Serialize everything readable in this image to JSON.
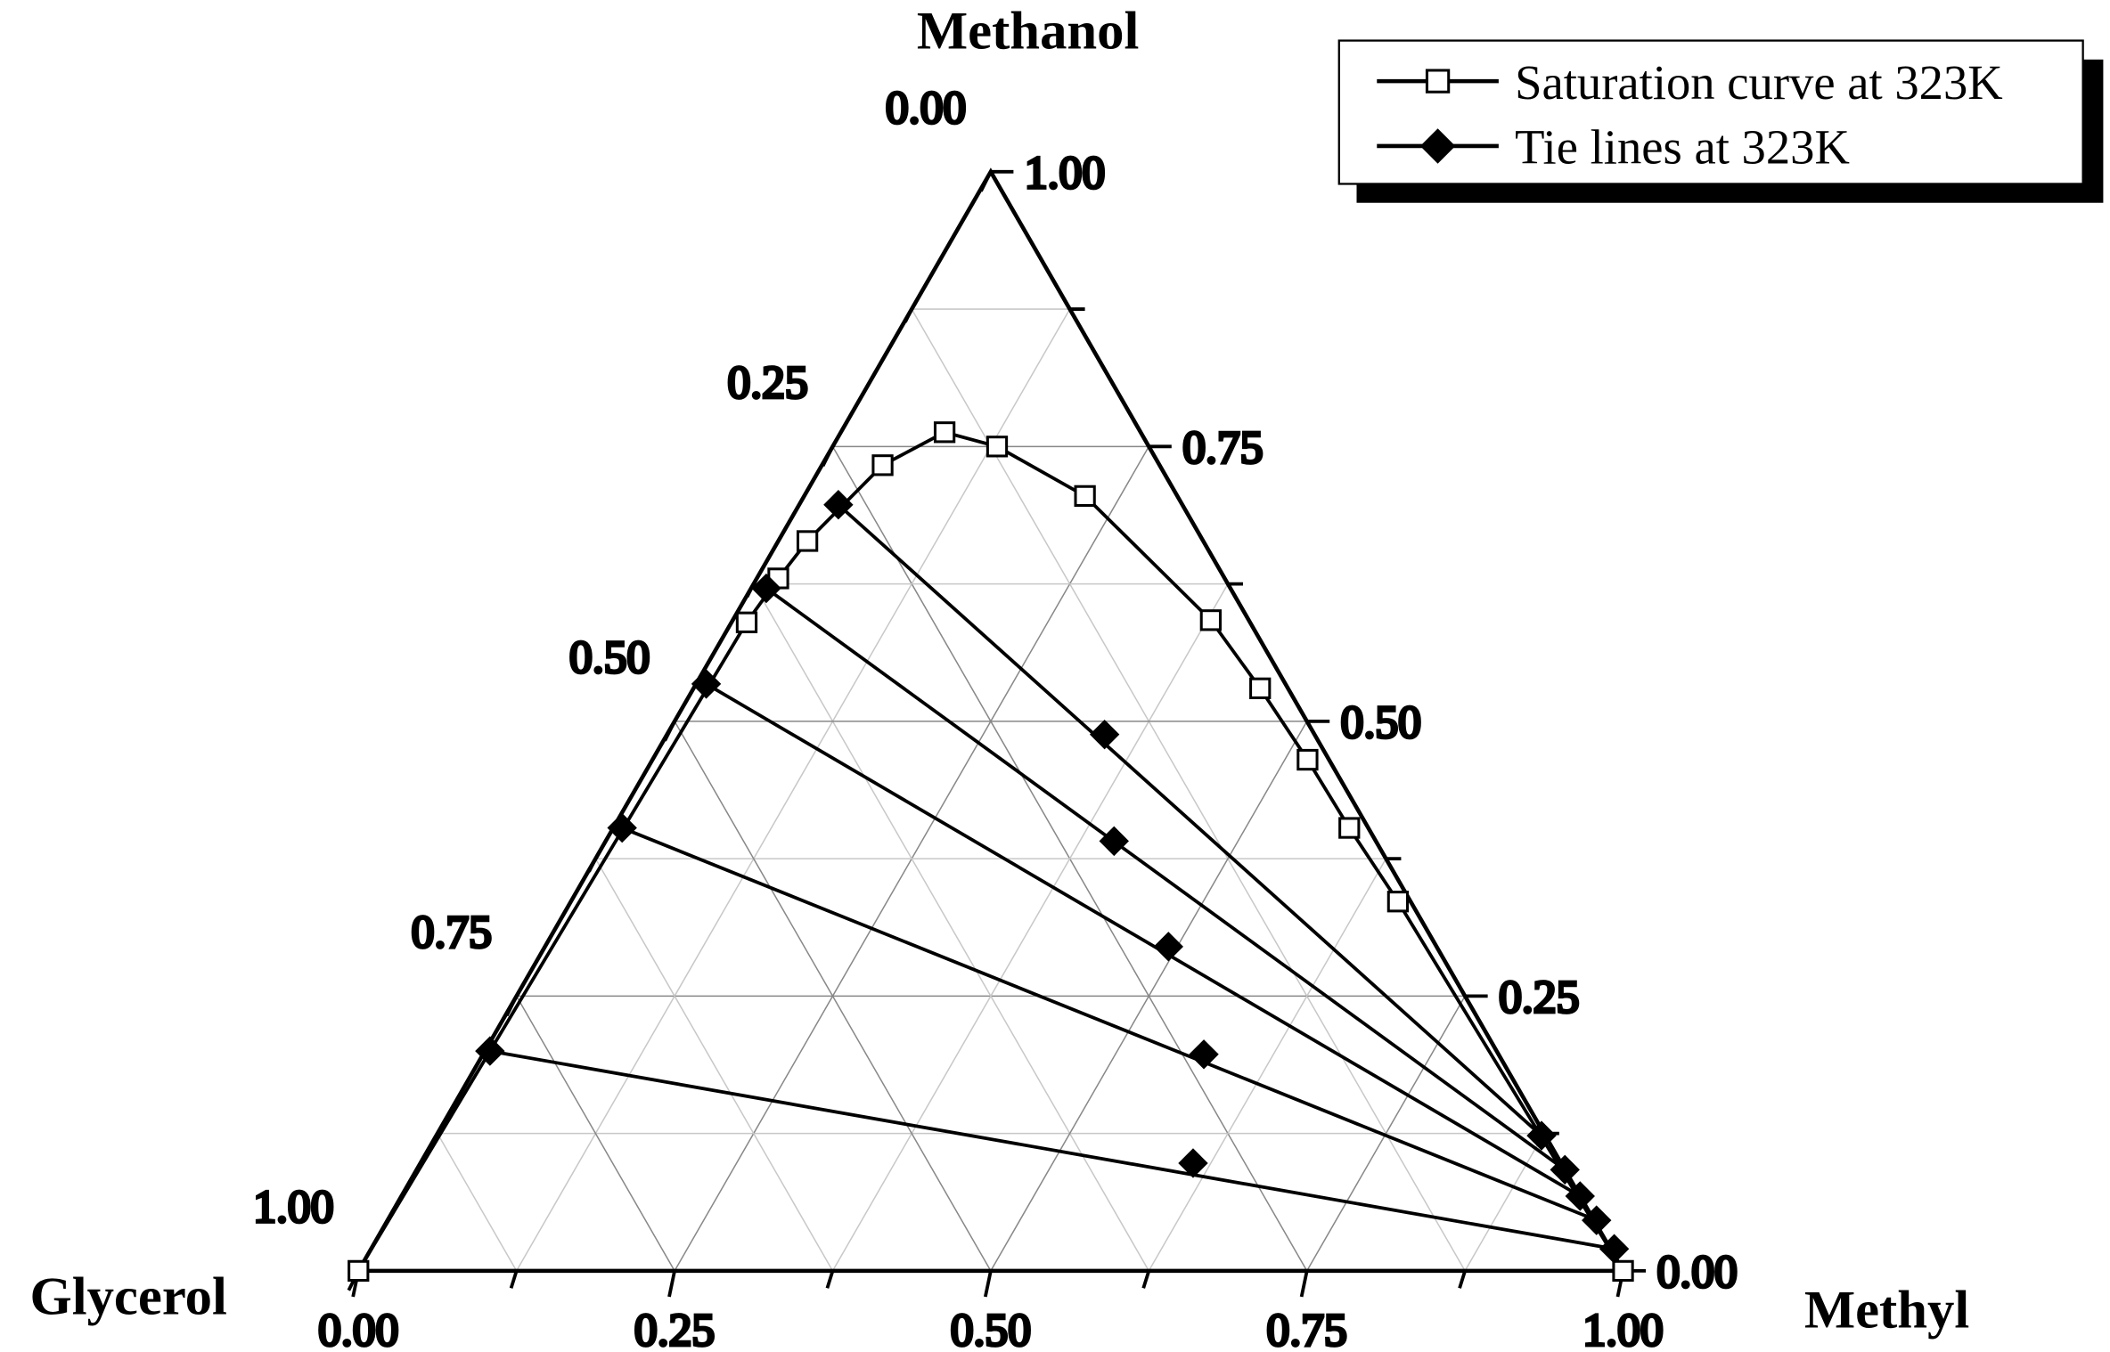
{
  "chart_data": {
    "type": "ternary",
    "axes": {
      "top": "Methanol",
      "left": "Glycerol",
      "right": "Methyl"
    },
    "ticks": [
      "0.00",
      "0.25",
      "0.50",
      "0.75",
      "1.00"
    ],
    "minor_tick_step": 0.125,
    "grid": true,
    "legend_position": "top-right",
    "series": [
      {
        "name": "Saturation curve at 323K",
        "marker": "open-square",
        "color": "#000000",
        "points": [
          {
            "methyl": 0.0,
            "methanol": 0.0
          },
          {
            "methyl": 0.012,
            "methanol": 0.59
          },
          {
            "methyl": 0.017,
            "methanol": 0.63
          },
          {
            "methyl": 0.023,
            "methanol": 0.664
          },
          {
            "methyl": 0.048,
            "methanol": 0.733
          },
          {
            "methyl": 0.082,
            "methanol": 0.763
          },
          {
            "methyl": 0.13,
            "methanol": 0.75
          },
          {
            "methyl": 0.222,
            "methanol": 0.705
          },
          {
            "methyl": 0.378,
            "methanol": 0.592
          },
          {
            "methyl": 0.448,
            "methanol": 0.53
          },
          {
            "methyl": 0.518,
            "methanol": 0.465
          },
          {
            "methyl": 0.582,
            "methanol": 0.403
          },
          {
            "methyl": 0.654,
            "methanol": 0.336
          },
          {
            "methyl": 1.0,
            "methanol": 0.0
          }
        ]
      },
      {
        "name": "Tie lines at 323K",
        "marker": "filled-diamond",
        "color": "#000000",
        "lines": [
          [
            {
              "methyl": 0.031,
              "methanol": 0.697
            },
            {
              "methyl": 0.346,
              "methanol": 0.488
            },
            {
              "methyl": 0.874,
              "methanol": 0.123
            }
          ],
          [
            {
              "methyl": 0.012,
              "methanol": 0.621
            },
            {
              "methyl": 0.402,
              "methanol": 0.391
            },
            {
              "methyl": 0.908,
              "methanol": 0.092
            }
          ],
          [
            {
              "methyl": 0.008,
              "methanol": 0.534
            },
            {
              "methyl": 0.493,
              "methanol": 0.295
            },
            {
              "methyl": 0.932,
              "methanol": 0.068
            }
          ],
          [
            {
              "methyl": 0.007,
              "methanol": 0.403
            },
            {
              "methyl": 0.57,
              "methanol": 0.197
            },
            {
              "methyl": 0.956,
              "methanol": 0.046
            }
          ],
          [
            {
              "methyl": 0.004,
              "methanol": 0.2
            },
            {
              "methyl": 0.611,
              "methanol": 0.098
            },
            {
              "methyl": 0.983,
              "methanol": 0.02
            }
          ]
        ]
      }
    ]
  }
}
